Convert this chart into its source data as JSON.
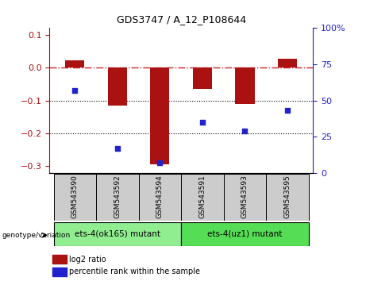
{
  "title": "GDS3747 / A_12_P108644",
  "samples": [
    "GSM543590",
    "GSM543592",
    "GSM543594",
    "GSM543591",
    "GSM543593",
    "GSM543595"
  ],
  "log2_ratio": [
    0.022,
    -0.115,
    -0.295,
    -0.065,
    -0.11,
    0.028
  ],
  "percentile_rank_pct": [
    57,
    17,
    7,
    35,
    29,
    43
  ],
  "bar_color": "#aa1111",
  "dot_color": "#2222cc",
  "ylim_left": [
    -0.32,
    0.12
  ],
  "ylim_right": [
    0,
    100
  ],
  "yticks_left": [
    -0.3,
    -0.2,
    -0.1,
    0.0,
    0.1
  ],
  "yticks_right": [
    0,
    25,
    50,
    75,
    100
  ],
  "groups": [
    {
      "label": "ets-4(ok165) mutant",
      "color": "#90ee90",
      "start": 0,
      "end": 3
    },
    {
      "label": "ets-4(uz1) mutant",
      "color": "#55dd55",
      "start": 3,
      "end": 6
    }
  ],
  "hline_zero_color": "#cc2222",
  "bar_width": 0.45,
  "label_gray": "#cccccc",
  "group_border_color": "#222222"
}
